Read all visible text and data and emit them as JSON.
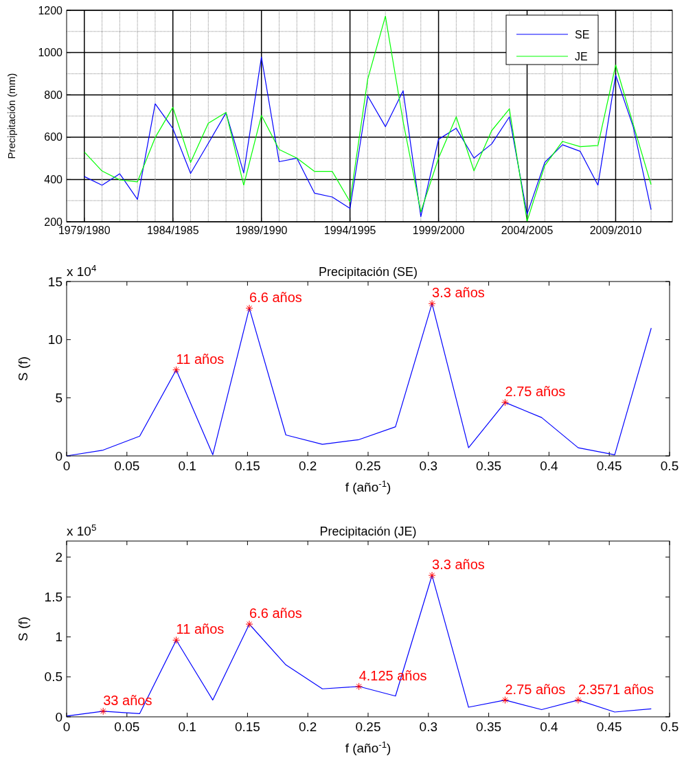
{
  "chart_data": [
    {
      "type": "line",
      "ylabel": "Precipitación (mm)",
      "categories": [
        "1979/1980",
        null,
        null,
        null,
        null,
        "1984/1985",
        null,
        null,
        null,
        null,
        "1989/1990",
        null,
        null,
        null,
        null,
        "1994/1995",
        null,
        null,
        null,
        null,
        "1999/2000",
        null,
        null,
        null,
        null,
        "2004/2005",
        null,
        null,
        null,
        null,
        "2009/2010",
        null,
        null
      ],
      "ylim": [
        200,
        1200
      ],
      "yticks": [
        200,
        400,
        600,
        800,
        1000,
        1200
      ],
      "grid": true,
      "legend": "top right",
      "series": [
        {
          "name": "SE",
          "color": "#0000ff",
          "values": [
            414,
            373,
            427,
            306,
            758,
            641,
            429,
            571,
            715,
            431,
            979,
            484,
            501,
            335,
            317,
            263,
            795,
            650,
            819,
            225,
            590,
            642,
            501,
            568,
            696,
            236,
            481,
            564,
            533,
            373,
            893,
            647,
            257
          ]
        },
        {
          "name": "JE",
          "color": "#00ff00",
          "values": [
            530,
            440,
            398,
            389,
            598,
            741,
            481,
            666,
            717,
            373,
            703,
            542,
            501,
            438,
            438,
            295,
            874,
            1172,
            674,
            247,
            501,
            696,
            441,
            631,
            734,
            203,
            466,
            580,
            555,
            561,
            941,
            658,
            376
          ]
        }
      ]
    },
    {
      "type": "line",
      "title": "Precipitación (SE)",
      "xlabel": "f (año$^{-1}$)",
      "ylabel": "S (f)",
      "xlim": [
        0,
        0.5
      ],
      "xticks": [
        0,
        0.05,
        0.1,
        0.15,
        0.2,
        0.25,
        0.3,
        0.35,
        0.4,
        0.45,
        0.5
      ],
      "ylim": [
        0,
        15
      ],
      "yticks": [
        0,
        5,
        10,
        15
      ],
      "series": [
        {
          "color": "#0000ff",
          "x": [
            0,
            0.0303,
            0.0606,
            0.0909,
            0.1212,
            0.1515,
            0.1818,
            0.2121,
            0.2424,
            0.2727,
            0.303,
            0.3333,
            0.3636,
            0.3939,
            0.4242,
            0.4545,
            0.4848
          ],
          "values": [
            0,
            0.5,
            1.7,
            7.4,
            0.1,
            12.7,
            1.8,
            1.0,
            1.4,
            2.5,
            13.1,
            0.7,
            4.6,
            3.3,
            0.7,
            0.1,
            11.0
          ]
        },
        {
          "type": "scatter",
          "color": "#ff0000",
          "marker": "cross",
          "x": [
            0.0909,
            0.1515,
            0.303,
            0.3636
          ],
          "values": [
            7.4,
            12.7,
            13.1,
            4.6
          ]
        }
      ],
      "annotations": [
        "x 10$^{4}$",
        {
          "text": "11 años",
          "x": 0.0909,
          "y": 7.4
        },
        {
          "text": "6.6 años",
          "x": 0.1515,
          "y": 12.7
        },
        {
          "text": "3.3 años",
          "x": 0.303,
          "y": 13.1
        },
        {
          "text": "2.75 años",
          "x": 0.3636,
          "y": 4.6
        }
      ]
    },
    {
      "type": "line",
      "title": "Precipitación (JE)",
      "xlabel": "f (año$^{-1}$)",
      "ylabel": "S (f)",
      "xlim": [
        0,
        0.5
      ],
      "xticks": [
        0,
        0.05,
        0.1,
        0.15,
        0.2,
        0.25,
        0.3,
        0.35,
        0.4,
        0.45,
        0.5
      ],
      "ylim": [
        0,
        2.2
      ],
      "yticks": [
        0,
        0.5,
        1,
        1.5,
        2
      ],
      "series": [
        {
          "color": "#0000ff",
          "x": [
            0,
            0.0303,
            0.0606,
            0.0909,
            0.1212,
            0.1515,
            0.1818,
            0.2121,
            0.2424,
            0.2727,
            0.303,
            0.3333,
            0.3636,
            0.3939,
            0.4242,
            0.4545,
            0.4848
          ],
          "values": [
            0.01,
            0.07,
            0.04,
            0.96,
            0.21,
            1.16,
            0.65,
            0.35,
            0.38,
            0.26,
            1.77,
            0.12,
            0.21,
            0.09,
            0.21,
            0.06,
            0.1
          ]
        },
        {
          "type": "scatter",
          "color": "#ff0000",
          "marker": "cross",
          "x": [
            0.0303,
            0.0909,
            0.1515,
            0.2424,
            0.303,
            0.3636,
            0.4242
          ],
          "values": [
            0.07,
            0.96,
            1.16,
            0.38,
            1.77,
            0.21,
            0.21
          ]
        }
      ],
      "annotations": [
        "x 10$^{5}$",
        {
          "text": "33 años",
          "x": 0.0303,
          "y": 0.07
        },
        {
          "text": "11 años",
          "x": 0.0909,
          "y": 0.96
        },
        {
          "text": "6.6 años",
          "x": 0.1515,
          "y": 1.16
        },
        {
          "text": "4.125 años",
          "x": 0.2424,
          "y": 0.38
        },
        {
          "text": "3.3 años",
          "x": 0.303,
          "y": 1.77
        },
        {
          "text": "2.75 años",
          "x": 0.3636,
          "y": 0.21
        },
        {
          "text": "2.3571 años",
          "x": 0.4242,
          "y": 0.21
        }
      ]
    }
  ]
}
